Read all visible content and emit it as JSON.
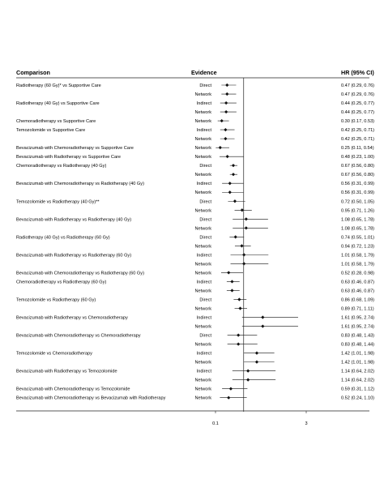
{
  "headers": {
    "comparison": "Comparison",
    "evidence": "Evidence",
    "hr": "HR (95% CI)"
  },
  "chart_data": {
    "type": "forest",
    "xlim": [
      0.1,
      3.0
    ],
    "reference_line": 1,
    "x_ticks": [
      {
        "value": 0.1,
        "label": "0.1"
      },
      {
        "value": 3,
        "label": "3"
      }
    ],
    "rows": [
      {
        "comparison": "Radiotherapy (60 Gy)* vs  Supportive Care",
        "evidence": "Direct",
        "hr": 0.47,
        "lo": 0.29,
        "hi": 0.76,
        "ci_text": "0.47 (0.29, 0.76)"
      },
      {
        "comparison": "",
        "evidence": "Network",
        "hr": 0.47,
        "lo": 0.29,
        "hi": 0.76,
        "ci_text": "0.47 (0.29, 0.76)"
      },
      {
        "comparison": "Radiotherapy (40 Gy) vs  Supportive Care",
        "evidence": "Indirect",
        "hr": 0.44,
        "lo": 0.25,
        "hi": 0.77,
        "ci_text": "0.44 (0.25, 0.77)"
      },
      {
        "comparison": "",
        "evidence": "Network",
        "hr": 0.44,
        "lo": 0.25,
        "hi": 0.77,
        "ci_text": "0.44 (0.25, 0.77)"
      },
      {
        "comparison": "Chemoradiotherapy vs  Supportive Care",
        "evidence": "Network",
        "hr": 0.3,
        "lo": 0.17,
        "hi": 0.53,
        "ci_text": "0.30 (0.17, 0.53)"
      },
      {
        "comparison": "Temozolomide vs  Supportive Care",
        "evidence": "Indirect",
        "hr": 0.42,
        "lo": 0.25,
        "hi": 0.71,
        "ci_text": "0.42 (0.25, 0.71)"
      },
      {
        "comparison": "",
        "evidence": "Network",
        "hr": 0.42,
        "lo": 0.25,
        "hi": 0.71,
        "ci_text": "0.42 (0.25, 0.71)"
      },
      {
        "comparison": "Bevacizumab with Chemoradiotherapy vs  Supportive Care",
        "evidence": "Network",
        "hr": 0.25,
        "lo": 0.11,
        "hi": 0.54,
        "ci_text": "0.25 (0.11, 0.54)"
      },
      {
        "comparison": "Bevacizumab with Radiotherapy vs  Supportive Care",
        "evidence": "Network",
        "hr": 0.48,
        "lo": 0.23,
        "hi": 1.0,
        "ci_text": "0.48 (0.23, 1.00)"
      },
      {
        "comparison": "Chemoradiotherapy vs Radiotherapy (40 Gy)",
        "evidence": "Direct",
        "hr": 0.67,
        "lo": 0.56,
        "hi": 0.8,
        "ci_text": "0.67 (0.56, 0.80)"
      },
      {
        "comparison": "",
        "evidence": "Network",
        "hr": 0.67,
        "lo": 0.56,
        "hi": 0.8,
        "ci_text": "0.67 (0.56, 0.80)"
      },
      {
        "comparison": "Bevacizumab with Chemoradiotherapy vs Radiotherapy (40 Gy)",
        "evidence": "Indirect",
        "hr": 0.56,
        "lo": 0.31,
        "hi": 0.99,
        "ci_text": "0.56 (0.31, 0.99)"
      },
      {
        "comparison": "",
        "evidence": "Network",
        "hr": 0.56,
        "lo": 0.31,
        "hi": 0.99,
        "ci_text": "0.56 (0.31, 0.99)"
      },
      {
        "comparison": "Temozolomide vs Radiotherapy (40 Gy)**",
        "evidence": "Direct",
        "hr": 0.72,
        "lo": 0.5,
        "hi": 1.05,
        "ci_text": "0.72 (0.50, 1.05)"
      },
      {
        "comparison": "",
        "evidence": "Network",
        "hr": 0.95,
        "lo": 0.71,
        "hi": 1.26,
        "ci_text": "0.95 (0.71, 1.26)"
      },
      {
        "comparison": "Bevacizumab with Radiotherapy vs Radiotherapy (40 Gy)",
        "evidence": "Direct",
        "hr": 1.08,
        "lo": 0.65,
        "hi": 1.78,
        "ci_text": "1.08 (0.65, 1.78)"
      },
      {
        "comparison": "",
        "evidence": "Network",
        "hr": 1.08,
        "lo": 0.65,
        "hi": 1.78,
        "ci_text": "1.08 (0.65, 1.78)"
      },
      {
        "comparison": "Radiotherapy (40 Gy) vs Radiotherapy (60 Gy)",
        "evidence": "Direct",
        "hr": 0.74,
        "lo": 0.55,
        "hi": 1.01,
        "ci_text": "0.74 (0.55, 1.01)"
      },
      {
        "comparison": "",
        "evidence": "Network",
        "hr": 0.94,
        "lo": 0.72,
        "hi": 1.23,
        "ci_text": "0.94 (0.72, 1.23)"
      },
      {
        "comparison": "Bevacizumab with Radiotherapy vs Radiotherapy (60 Gy)",
        "evidence": "Indirect",
        "hr": 1.01,
        "lo": 0.58,
        "hi": 1.79,
        "ci_text": "1.01 (0.58, 1.79)"
      },
      {
        "comparison": "",
        "evidence": "Network",
        "hr": 1.01,
        "lo": 0.58,
        "hi": 1.79,
        "ci_text": "1.01 (0.58, 1.79)"
      },
      {
        "comparison": "Bevacizumab with Chemoradiotherapy vs Radiotherapy (60 Gy)",
        "evidence": "Network",
        "hr": 0.52,
        "lo": 0.28,
        "hi": 0.98,
        "ci_text": "0.52 (0.28, 0.98)"
      },
      {
        "comparison": "Chemoradiotherapy vs Radiotherapy (60 Gy)",
        "evidence": "Indirect",
        "hr": 0.63,
        "lo": 0.46,
        "hi": 0.87,
        "ci_text": "0.63 (0.46, 0.87)"
      },
      {
        "comparison": "",
        "evidence": "Network",
        "hr": 0.63,
        "lo": 0.46,
        "hi": 0.87,
        "ci_text": "0.63 (0.46, 0.87)"
      },
      {
        "comparison": "Temozolomide vs Radiotherapy (60 Gy)",
        "evidence": "Direct",
        "hr": 0.86,
        "lo": 0.68,
        "hi": 1.09,
        "ci_text": "0.86 (0.68, 1.09)"
      },
      {
        "comparison": "",
        "evidence": "Network",
        "hr": 0.89,
        "lo": 0.71,
        "hi": 1.11,
        "ci_text": "0.89 (0.71, 1.11)"
      },
      {
        "comparison": "Bevacizumab with Radiotherapy vs Chemoradiotherapy",
        "evidence": "Indirect",
        "hr": 1.61,
        "lo": 0.95,
        "hi": 2.74,
        "ci_text": "1.61 (0.95, 2.74)"
      },
      {
        "comparison": "",
        "evidence": "Network",
        "hr": 1.61,
        "lo": 0.95,
        "hi": 2.74,
        "ci_text": "1.61 (0.95, 2.74)"
      },
      {
        "comparison": "Bevacizumab with Chemoradiotherapy vs Chemoradiotherapy",
        "evidence": "Direct",
        "hr": 0.83,
        "lo": 0.48,
        "hi": 1.43,
        "ci_text": "0.83 (0.48, 1.43)"
      },
      {
        "comparison": "",
        "evidence": "Network",
        "hr": 0.83,
        "lo": 0.48,
        "hi": 1.44,
        "ci_text": "0.83 (0.48, 1.44)"
      },
      {
        "comparison": "Temozolomide vs Chemoradiotherapy",
        "evidence": "Indirect",
        "hr": 1.42,
        "lo": 1.01,
        "hi": 1.98,
        "ci_text": "1.42 (1.01, 1.98)"
      },
      {
        "comparison": "",
        "evidence": "Network",
        "hr": 1.42,
        "lo": 1.01,
        "hi": 1.98,
        "ci_text": "1.42 (1.01, 1.98)"
      },
      {
        "comparison": "Bevacizumab with Radiotherapy vs Temozolomide",
        "evidence": "Indirect",
        "hr": 1.14,
        "lo": 0.64,
        "hi": 2.02,
        "ci_text": "1.14 (0.64, 2.02)"
      },
      {
        "comparison": "",
        "evidence": "Network",
        "hr": 1.14,
        "lo": 0.64,
        "hi": 2.02,
        "ci_text": "1.14 (0.64, 2.02)"
      },
      {
        "comparison": "Bevacizumab with Chemoradiotherapy vs Temozolomide",
        "evidence": "Network",
        "hr": 0.59,
        "lo": 0.31,
        "hi": 1.12,
        "ci_text": "0.59 (0.31, 1.12)"
      },
      {
        "comparison": "Bevacizumab with Chemoradiotherapy vs Bevacizumab with Radiotherapy",
        "evidence": "Network",
        "hr": 0.52,
        "lo": 0.24,
        "hi": 1.1,
        "ci_text": "0.52 (0.24, 1.10)"
      }
    ]
  }
}
